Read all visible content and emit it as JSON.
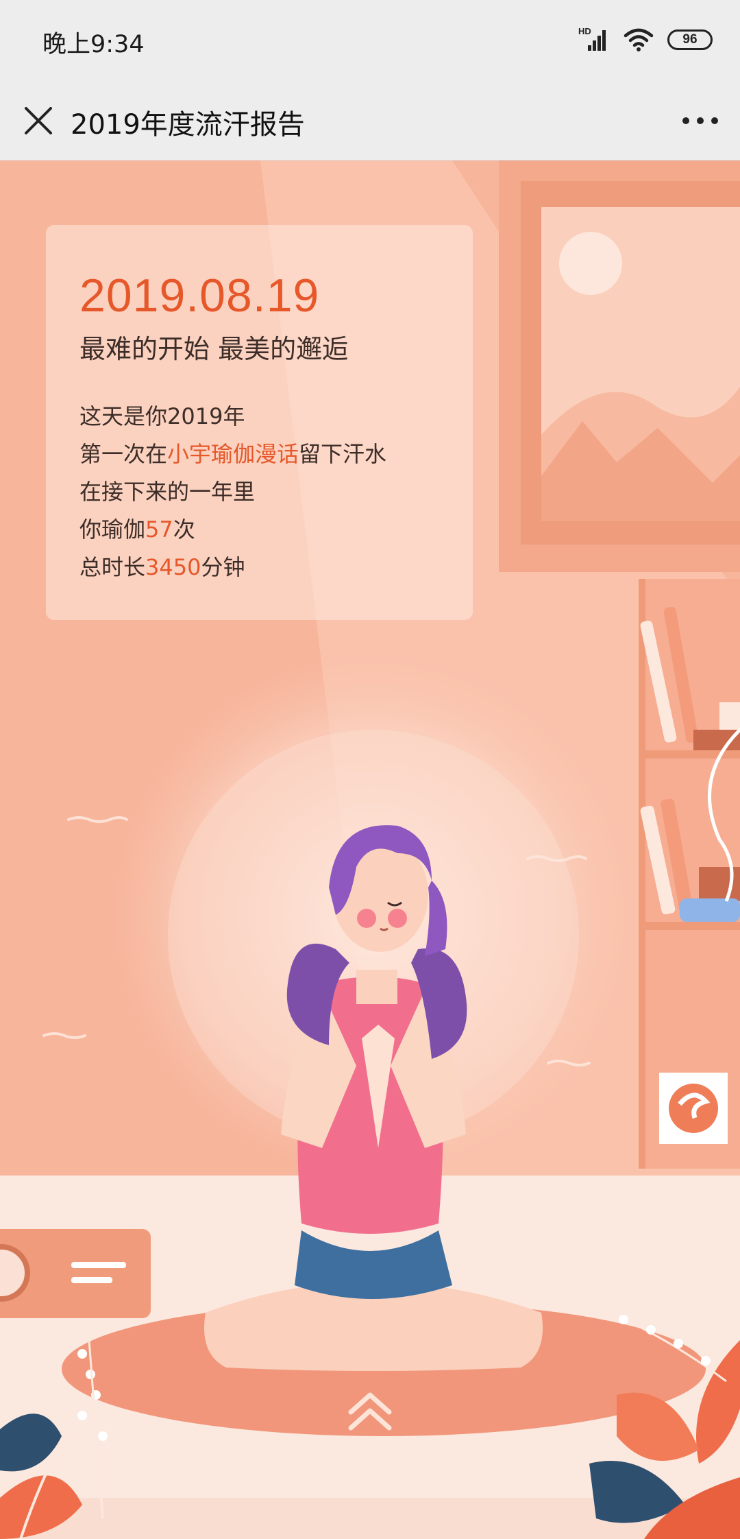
{
  "status_bar": {
    "time": "晚上9:34",
    "signal_label": "HD",
    "battery_level": "96"
  },
  "nav_bar": {
    "title": "2019年度流汗报告"
  },
  "card": {
    "date": "2019.08.19",
    "subtitle": "最难的开始 最美的邂逅",
    "line1": "这天是你2019年",
    "line2_prefix": "第一次在",
    "line2_highlight": "小宇瑜伽漫话",
    "line2_suffix": "留下汗水",
    "line3": "在接下来的一年里",
    "line4_prefix": "你瑜伽",
    "line4_count": "57",
    "line4_suffix": "次",
    "line5_prefix": "总时长",
    "line5_minutes": "3450",
    "line5_suffix": "分钟"
  },
  "colors": {
    "accent": "#e6572a",
    "background": "#f6b79d",
    "bar": "#ededed"
  },
  "icons": {
    "close": "close-icon",
    "more": "more-icon",
    "scroll_up": "chevron-up-icon"
  }
}
